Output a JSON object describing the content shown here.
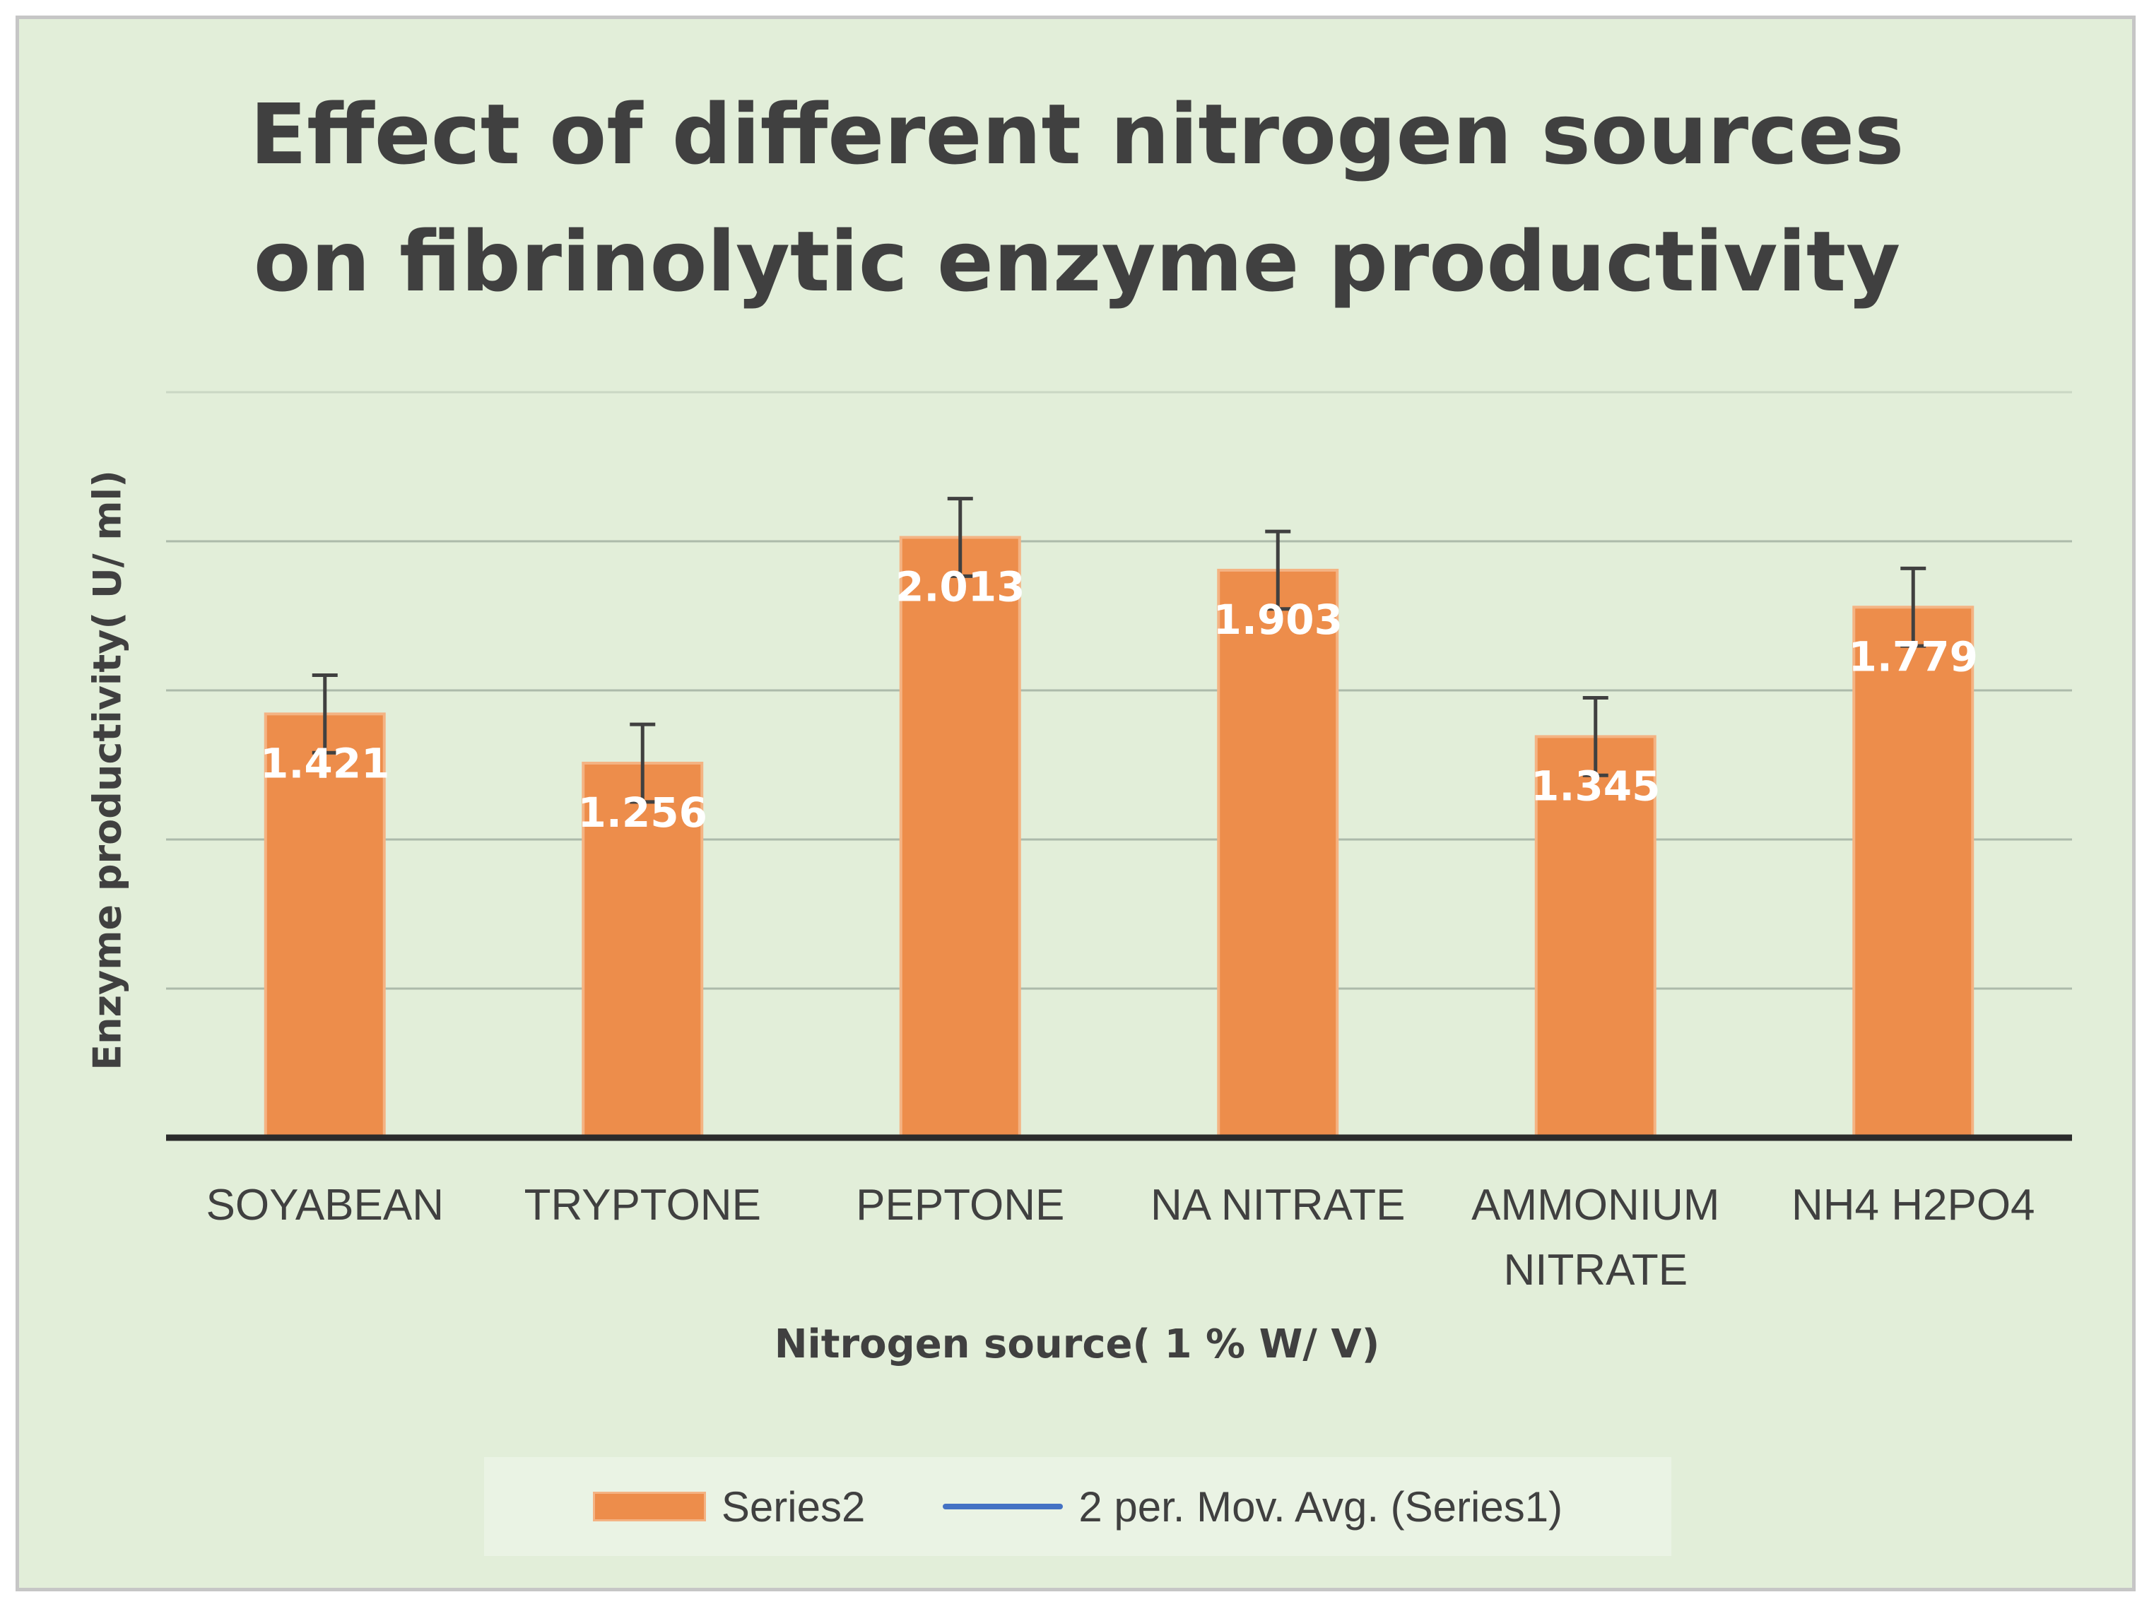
{
  "chart_data": {
    "type": "bar",
    "title_lines": [
      "Effect of different nitrogen sources",
      "on fibrinolytic enzyme productivity"
    ],
    "xlabel": "Nitrogen source( 1 % W/ V)",
    "ylabel": "Enzyme productivity( U/ ml)",
    "categories": [
      "SOYABEAN",
      "TRYPTONE",
      "PEPTONE",
      "NA NITRATE",
      "AMMONIUM\nNITRATE",
      "NH4 H2PO4"
    ],
    "series": [
      {
        "name": "Series2",
        "values": [
          1.421,
          1.256,
          2.013,
          1.903,
          1.345,
          1.779
        ],
        "data_labels": [
          "1.421",
          "1.256",
          "2.013",
          "1.903",
          "1.345",
          "1.779"
        ],
        "error": [
          0.13,
          0.13,
          0.13,
          0.13,
          0.13,
          0.13
        ]
      },
      {
        "name": "2 per. Mov. Avg. (Series1)",
        "kind": "line"
      }
    ],
    "ylim": [
      0,
      2.5
    ],
    "ytick_step": 0.5,
    "y_tick_labels_shown": false,
    "grid": true,
    "legend_position": "bottom"
  },
  "colors": {
    "background": "#e2eed9",
    "bar_fill": "#ed8d4b",
    "bar_edge": "#f4b383",
    "gridline": "#9fae9f",
    "axis": "#2b2b2b",
    "error_bar": "#404040",
    "data_label": "#ffffff",
    "trendline": "#4472c4",
    "text": "#404040"
  }
}
